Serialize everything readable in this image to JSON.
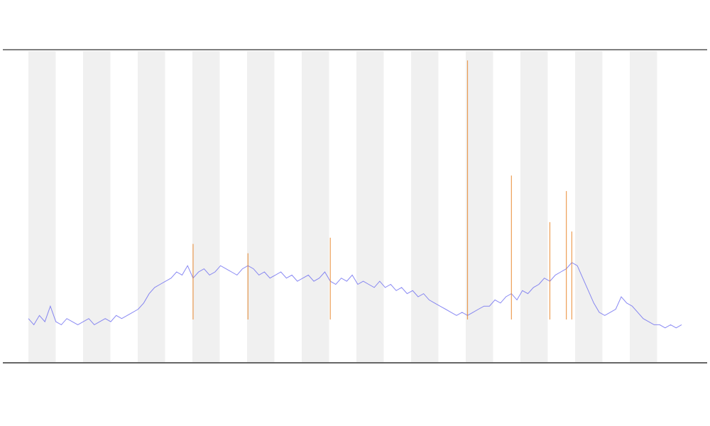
{
  "chart_data": [
    {
      "type": "line",
      "ylim": [
        0,
        100
      ],
      "series": [
        {
          "color": "#6b6bf0",
          "values": [
            14,
            12,
            15,
            13,
            18,
            13,
            12,
            14,
            13,
            12,
            13,
            14,
            12,
            13,
            14,
            13,
            15,
            14,
            15,
            16,
            17,
            19,
            22,
            24,
            25,
            26,
            27,
            29,
            28,
            31,
            27,
            29,
            30,
            28,
            29,
            31,
            30,
            29,
            28,
            30,
            31,
            30,
            28,
            29,
            27,
            28,
            29,
            27,
            28,
            26,
            27,
            28,
            26,
            27,
            29,
            26,
            25,
            27,
            26,
            28,
            25,
            26,
            25,
            24,
            26,
            24,
            25,
            23,
            24,
            22,
            23,
            21,
            22,
            20,
            19,
            18,
            17,
            16,
            15,
            16,
            15,
            16,
            17,
            18,
            18,
            20,
            19,
            21,
            22,
            20,
            23,
            22,
            24,
            25,
            27,
            26,
            28,
            29,
            30,
            32,
            31,
            27,
            23,
            19,
            16,
            15,
            16,
            17,
            21,
            19,
            18,
            16,
            14,
            13,
            12,
            12,
            11,
            12,
            11,
            12
          ]
        }
      ]
    },
    {
      "type": "stem",
      "ylim": [
        0,
        100
      ],
      "series": [
        {
          "color": "#e8862a",
          "values": [
            null,
            null,
            null,
            null,
            null,
            null,
            null,
            null,
            null,
            null,
            null,
            null,
            null,
            null,
            null,
            null,
            null,
            null,
            null,
            null,
            null,
            null,
            null,
            null,
            null,
            null,
            null,
            null,
            null,
            null,
            38,
            null,
            null,
            null,
            null,
            null,
            null,
            null,
            null,
            null,
            35,
            null,
            null,
            null,
            null,
            null,
            null,
            null,
            null,
            null,
            null,
            null,
            null,
            null,
            null,
            40,
            null,
            null,
            null,
            null,
            null,
            null,
            null,
            null,
            null,
            null,
            null,
            null,
            null,
            null,
            null,
            null,
            null,
            null,
            null,
            null,
            null,
            null,
            null,
            null,
            97,
            null,
            null,
            null,
            null,
            null,
            null,
            null,
            60,
            null,
            null,
            null,
            null,
            null,
            null,
            45,
            null,
            null,
            55,
            42,
            null,
            null,
            null,
            null,
            null,
            null,
            null,
            null,
            null,
            null,
            null,
            null,
            null,
            null,
            null,
            null,
            null,
            null,
            null,
            null
          ]
        }
      ]
    }
  ]
}
